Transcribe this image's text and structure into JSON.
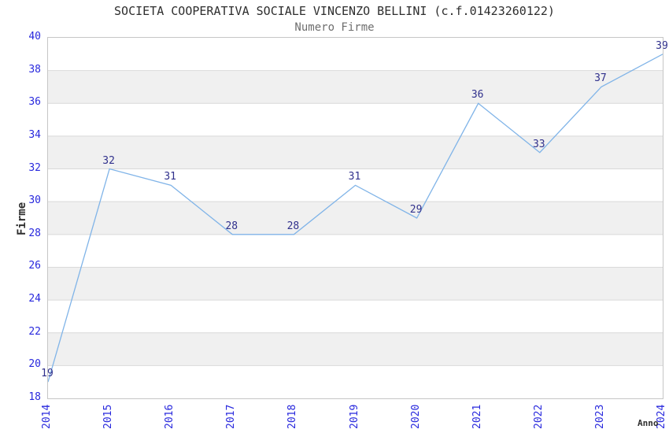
{
  "chart_data": {
    "type": "line",
    "title": "SOCIETA COOPERATIVA SOCIALE VINCENZO BELLINI (c.f.01423260122)",
    "subtitle": "Numero Firme",
    "xlabel": "Anno",
    "ylabel": "Firme",
    "categories": [
      "2014",
      "2015",
      "2016",
      "2017",
      "2018",
      "2019",
      "2020",
      "2021",
      "2022",
      "2023",
      "2024"
    ],
    "series": [
      {
        "name": "Numero Firme",
        "values": [
          19,
          32,
          31,
          28,
          28,
          31,
          29,
          36,
          33,
          37,
          39
        ]
      }
    ],
    "point_labels": [
      "19",
      "32",
      "31",
      "28",
      "28",
      "31",
      "29",
      "36",
      "33",
      "37",
      "39"
    ],
    "ylim": [
      18,
      40
    ],
    "ytick_step": 2,
    "yticks": [
      "18",
      "20",
      "22",
      "24",
      "26",
      "28",
      "30",
      "32",
      "34",
      "36",
      "38",
      "40"
    ],
    "grid": "horizontal",
    "legend": "none",
    "layout_hints": {
      "x_tick_rotation_deg": -90,
      "alternating_bands": true,
      "bands_gray_from_top_index_odd": true
    },
    "colors": {
      "line": "#80b4e8",
      "tick_label": "#2828dd",
      "point_label": "#30308c",
      "band": "#f0f0f0",
      "gridline": "#d9d9d9",
      "plot_border": "#c6c6c6",
      "title": "#2e2e2e",
      "subtitle": "#6e6e6e",
      "axis_label": "#2e2e2e",
      "background": "#ffffff"
    }
  }
}
